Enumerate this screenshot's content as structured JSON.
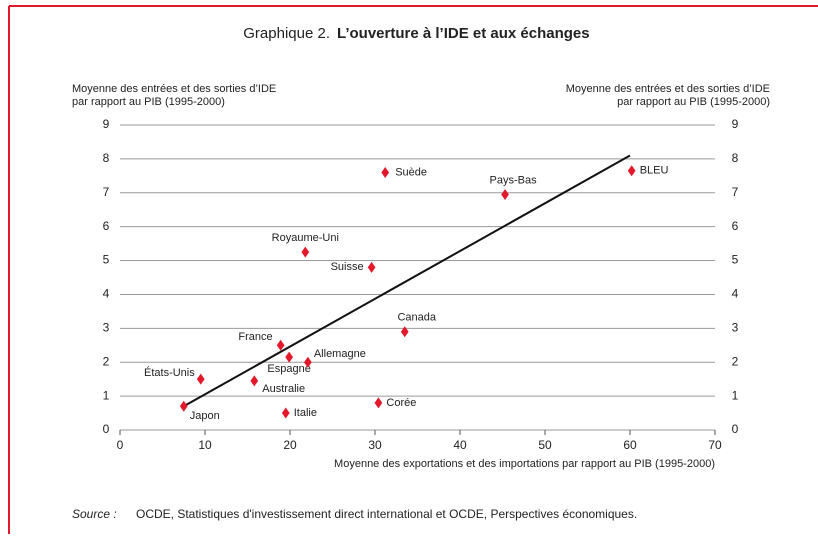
{
  "chart_data": {
    "type": "scatter",
    "title_prefix": "Graphique 2.",
    "title": "L’ouverture à l’IDE et aux échanges",
    "y_label": [
      "Moyenne des entrées et des sorties d’IDE",
      "par rapport au PIB (1995-2000)"
    ],
    "y2_label": [
      "Moyenne des entrées et des sorties d’IDE",
      "par rapport au PIB (1995-2000)"
    ],
    "x_label": "Moyenne des exportations et des importations par rapport au PIB (1995-2000)",
    "labels": [
      "Japon",
      "États-Unis",
      "Australie",
      "Italie",
      "France",
      "Espagne",
      "Allemagne",
      "Corée",
      "Royaume-Uni",
      "Suisse",
      "Suède",
      "Canada",
      "Pays-Bas",
      "BLEU"
    ],
    "x": [
      7.5,
      9.5,
      15.8,
      19.5,
      18.9,
      19.9,
      22.1,
      30.4,
      21.8,
      29.6,
      31.2,
      33.5,
      45.3,
      60.2
    ],
    "y": [
      0.7,
      1.5,
      1.45,
      0.5,
      2.5,
      2.15,
      2.0,
      0.8,
      5.25,
      4.8,
      7.6,
      2.9,
      6.95,
      7.65
    ],
    "color": "#e3192b",
    "trend_line": {
      "x": [
        7.5,
        60
      ],
      "y": [
        0.7,
        8.1
      ]
    },
    "xlim": [
      0,
      70
    ],
    "xticks": [
      0,
      10,
      20,
      30,
      40,
      50,
      60,
      70
    ],
    "ylim": [
      0,
      9
    ],
    "yticks": [
      0,
      1,
      2,
      3,
      4,
      5,
      6,
      7,
      8,
      9
    ],
    "y2lim": [
      0,
      9
    ],
    "y2ticks": [
      0,
      1,
      2,
      3,
      4,
      5,
      6,
      7,
      8,
      9
    ],
    "grid": true
  },
  "source": {
    "label": "Source :",
    "text": "OCDE, Statistiques d'investissement direct international et OCDE, Perspectives économiques."
  }
}
